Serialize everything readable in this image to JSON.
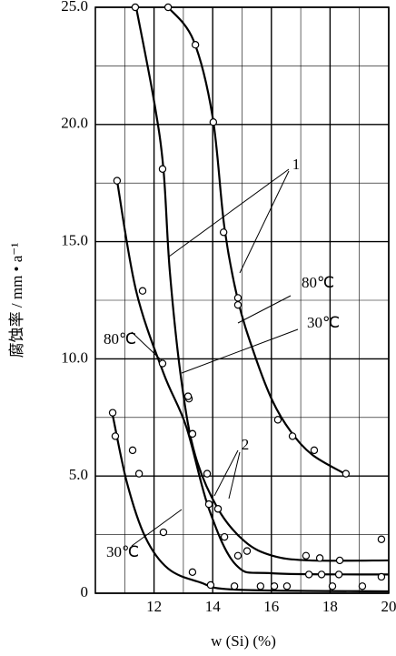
{
  "chart_data": {
    "type": "line",
    "xlabel": "w (Si) (%)",
    "ylabel": "腐蚀率 / mm • a⁻¹",
    "xlim": [
      10,
      20
    ],
    "ylim": [
      0,
      25
    ],
    "xticks": [
      12,
      14,
      16,
      18,
      20
    ],
    "yticks": [
      0,
      {
        "value": 5,
        "label": "5.0"
      },
      {
        "value": 10,
        "label": "10.0"
      },
      {
        "value": 15,
        "label": "15.0"
      },
      {
        "value": 20,
        "label": "20.0"
      },
      {
        "value": 25,
        "label": "25.0"
      }
    ],
    "xminor": [
      11,
      13,
      15,
      17,
      19
    ],
    "yminor": [
      2.5,
      7.5,
      12.5,
      17.5,
      22.5
    ],
    "grid": true,
    "color": "#000000",
    "annotations": [
      "1",
      "2",
      "80℃",
      "30℃",
      "80℃",
      "30℃"
    ],
    "series": [
      {
        "mode": "line",
        "x": [
          12.48,
          13.34,
          14.0,
          14.4,
          14.86,
          15.42,
          16.04,
          16.66,
          17.4,
          18.5
        ],
        "values": [
          25,
          23.6,
          20.3,
          15.6,
          12.5,
          10.2,
          8.2,
          6.9,
          5.9,
          5.1
        ]
      },
      {
        "mode": "markers",
        "x": [
          12.48,
          13.41,
          14.02,
          14.37,
          14.86,
          14.86,
          16.22,
          16.72,
          17.46,
          18.54
        ],
        "values": [
          25,
          23.4,
          20.1,
          15.4,
          12.6,
          12.3,
          7.4,
          6.7,
          6.1,
          5.1
        ]
      },
      {
        "mode": "line",
        "x": [
          11.39,
          12.0,
          12.32,
          12.54,
          12.94,
          13.4,
          14.18,
          15.1,
          16.04,
          17.3,
          20
        ],
        "values": [
          25,
          21.0,
          18.1,
          13.7,
          9.0,
          5.9,
          3.6,
          2.2,
          1.6,
          1.4,
          1.4
        ]
      },
      {
        "mode": "markers",
        "x": [
          11.36,
          12.29,
          13.19,
          13.31,
          13.81,
          14.18,
          14.4,
          14.86,
          17.18,
          17.65,
          18.33,
          19.75
        ],
        "values": [
          25,
          18.1,
          8.3,
          6.8,
          5.1,
          3.6,
          2.4,
          1.6,
          1.6,
          1.5,
          1.4,
          2.3
        ]
      },
      {
        "mode": "line",
        "x": [
          10.74,
          11.39,
          12.32,
          13.1,
          13.87,
          14.8,
          16.04,
          20
        ],
        "values": [
          17.6,
          12.9,
          9.4,
          7.1,
          3.6,
          1.2,
          0.85,
          0.8
        ]
      },
      {
        "mode": "markers",
        "x": [
          10.74,
          11.61,
          12.29,
          13.16,
          13.31,
          13.87,
          14.18,
          15.17,
          16.1,
          17.28,
          17.71,
          18.3,
          19.75
        ],
        "values": [
          17.6,
          12.9,
          9.8,
          8.4,
          6.8,
          3.8,
          3.6,
          1.8,
          0.3,
          0.8,
          0.8,
          0.8,
          0.7
        ]
      },
      {
        "mode": "line",
        "x": [
          10.59,
          11.08,
          11.7,
          12.48,
          13.56,
          14.8,
          20
        ],
        "values": [
          7.6,
          4.7,
          2.4,
          1.05,
          0.47,
          0.15,
          0.08
        ]
      },
      {
        "mode": "markers",
        "x": [
          10.59,
          10.68,
          11.27,
          11.49,
          12.32,
          13.31,
          13.93,
          14.74,
          15.63,
          16.53,
          18.08,
          19.1
        ],
        "values": [
          7.7,
          6.7,
          6.1,
          5.1,
          2.6,
          0.9,
          0.35,
          0.3,
          0.3,
          0.3,
          0.3,
          0.3
        ]
      }
    ]
  }
}
